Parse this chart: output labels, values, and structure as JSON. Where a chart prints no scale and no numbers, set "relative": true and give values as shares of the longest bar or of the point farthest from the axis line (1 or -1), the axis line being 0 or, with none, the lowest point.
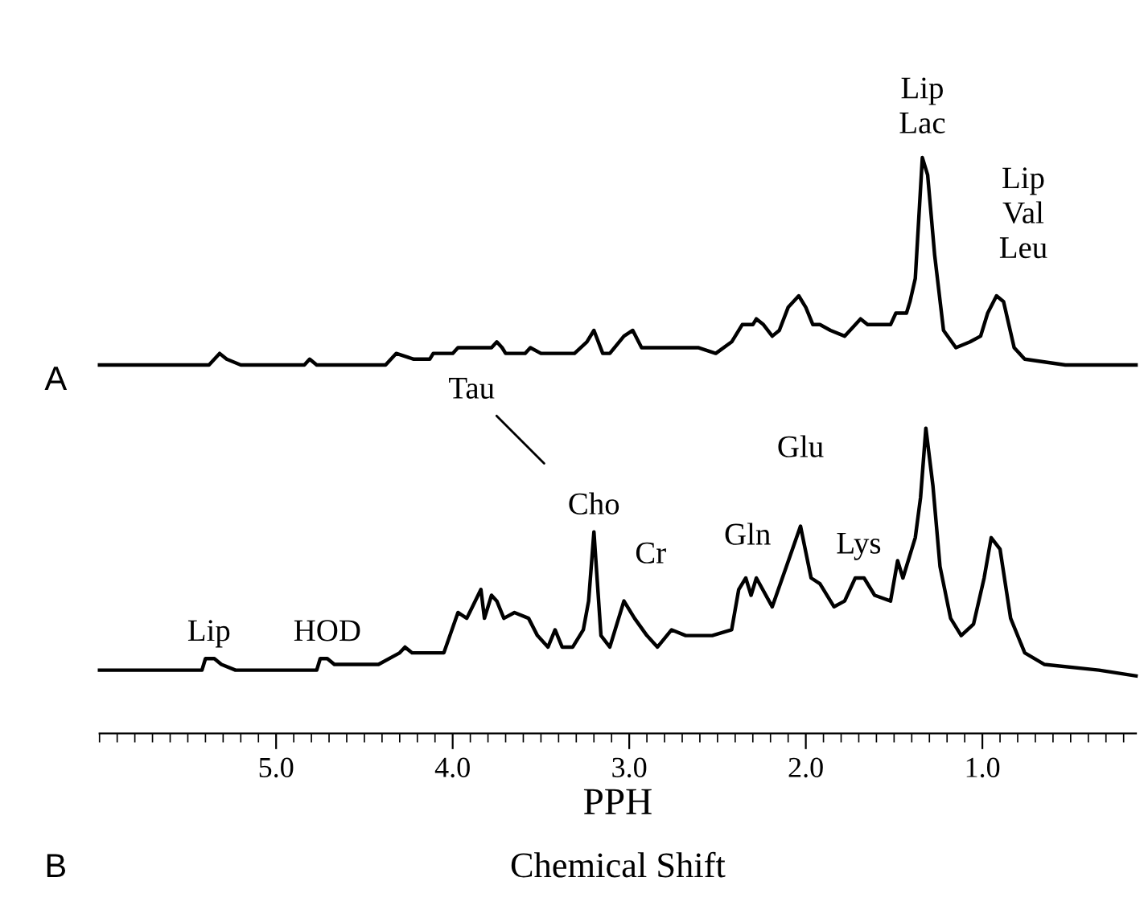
{
  "chart_data": {
    "type": "line",
    "relative": true,
    "xlim": [
      6.0,
      0.13
    ],
    "xticks": [
      {
        "value": 5.0,
        "label": "5.0"
      },
      {
        "value": 4.0,
        "label": "4.0"
      },
      {
        "value": 3.0,
        "label": "3.0"
      },
      {
        "value": 2.0,
        "label": "2.0"
      },
      {
        "value": 1.0,
        "label": "1.0"
      }
    ],
    "tick_labels": "x",
    "xlabel": "PPH",
    "grid": false,
    "legend": false,
    "series": [
      {
        "color": "#000000",
        "x": [
          6.0,
          5.38,
          5.32,
          5.28,
          5.2,
          4.84,
          4.81,
          4.77,
          4.38,
          4.32,
          4.22,
          4.13,
          4.11,
          4.0,
          3.97,
          3.78,
          3.75,
          3.72,
          3.7,
          3.59,
          3.56,
          3.5,
          3.31,
          3.24,
          3.2,
          3.15,
          3.11,
          3.03,
          2.98,
          2.93,
          2.86,
          2.76,
          2.7,
          2.61,
          2.51,
          2.42,
          2.36,
          2.3,
          2.28,
          2.24,
          2.19,
          2.15,
          2.1,
          2.04,
          2.0,
          1.96,
          1.92,
          1.86,
          1.78,
          1.69,
          1.65,
          1.57,
          1.52,
          1.49,
          1.43,
          1.41,
          1.38,
          1.34,
          1.31,
          1.27,
          1.22,
          1.15,
          1.07,
          1.01,
          0.97,
          0.92,
          0.88,
          0.82,
          0.76,
          0.53,
          0.13
        ],
        "values": [
          0.64,
          0.64,
          0.66,
          0.65,
          0.64,
          0.64,
          0.65,
          0.64,
          0.64,
          0.66,
          0.65,
          0.65,
          0.66,
          0.66,
          0.67,
          0.67,
          0.68,
          0.67,
          0.66,
          0.66,
          0.67,
          0.66,
          0.66,
          0.68,
          0.7,
          0.66,
          0.66,
          0.69,
          0.7,
          0.67,
          0.67,
          0.67,
          0.67,
          0.67,
          0.66,
          0.68,
          0.71,
          0.71,
          0.72,
          0.71,
          0.69,
          0.7,
          0.74,
          0.76,
          0.74,
          0.71,
          0.71,
          0.7,
          0.69,
          0.72,
          0.71,
          0.71,
          0.71,
          0.73,
          0.73,
          0.75,
          0.79,
          1.0,
          0.97,
          0.83,
          0.7,
          0.67,
          0.68,
          0.69,
          0.73,
          0.76,
          0.75,
          0.67,
          0.65,
          0.64,
          0.64
        ]
      },
      {
        "color": "#000000",
        "x": [
          6.0,
          5.84,
          5.42,
          5.4,
          5.38,
          5.35,
          5.31,
          5.23,
          5.19,
          4.77,
          4.75,
          4.71,
          4.67,
          4.42,
          4.3,
          4.27,
          4.23,
          4.15,
          4.05,
          3.97,
          3.92,
          3.84,
          3.82,
          3.78,
          3.75,
          3.71,
          3.65,
          3.57,
          3.52,
          3.46,
          3.42,
          3.38,
          3.32,
          3.26,
          3.23,
          3.2,
          3.16,
          3.11,
          3.03,
          2.97,
          2.9,
          2.84,
          2.76,
          2.68,
          2.53,
          2.42,
          2.38,
          2.34,
          2.31,
          2.28,
          2.19,
          2.11,
          2.03,
          1.97,
          1.92,
          1.84,
          1.78,
          1.72,
          1.67,
          1.61,
          1.52,
          1.48,
          1.45,
          1.38,
          1.35,
          1.32,
          1.28,
          1.24,
          1.18,
          1.12,
          1.05,
          0.99,
          0.95,
          0.9,
          0.84,
          0.76,
          0.65,
          0.34,
          0.13
        ],
        "values": [
          0.11,
          0.11,
          0.11,
          0.13,
          0.13,
          0.13,
          0.12,
          0.11,
          0.11,
          0.11,
          0.13,
          0.13,
          0.12,
          0.12,
          0.14,
          0.15,
          0.14,
          0.14,
          0.14,
          0.21,
          0.2,
          0.25,
          0.2,
          0.24,
          0.23,
          0.2,
          0.21,
          0.2,
          0.17,
          0.15,
          0.18,
          0.15,
          0.15,
          0.18,
          0.23,
          0.35,
          0.17,
          0.15,
          0.23,
          0.2,
          0.17,
          0.15,
          0.18,
          0.17,
          0.17,
          0.18,
          0.25,
          0.27,
          0.24,
          0.27,
          0.22,
          0.29,
          0.36,
          0.27,
          0.26,
          0.22,
          0.23,
          0.27,
          0.27,
          0.24,
          0.23,
          0.3,
          0.27,
          0.34,
          0.41,
          0.53,
          0.43,
          0.29,
          0.2,
          0.17,
          0.19,
          0.27,
          0.34,
          0.32,
          0.2,
          0.14,
          0.12,
          0.11,
          0.1
        ]
      }
    ],
    "annotations": [
      {
        "text": "Lip\nLac",
        "x": 1.34,
        "y": 1.0
      },
      {
        "text": "Lip\nVal\nLeu",
        "x": 0.92,
        "y": 0.76
      },
      "A",
      {
        "text": "Lip",
        "x": 5.38,
        "y": 0.13
      },
      {
        "text": "HOD",
        "x": 4.71,
        "y": 0.13
      },
      "Tau",
      {
        "text": "Cho",
        "x": 3.2,
        "y": 0.35
      },
      {
        "text": "Cr",
        "x": 2.98,
        "y": 0.23
      },
      {
        "text": "Gln",
        "x": 2.33,
        "y": 0.27
      },
      {
        "text": "Glu",
        "x": 2.03,
        "y": 0.36
      },
      {
        "text": "Lys",
        "x": 1.7,
        "y": 0.27
      },
      "B",
      "Chemical Shift"
    ]
  }
}
